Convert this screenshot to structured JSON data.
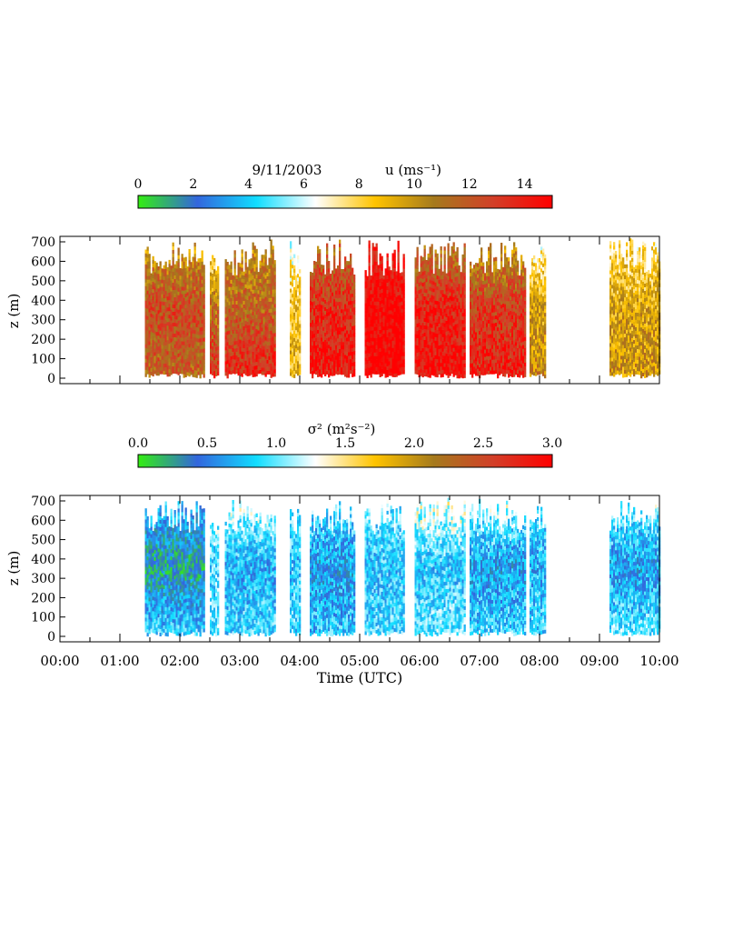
{
  "date_label": "9/11/2003",
  "colorbar_colors": [
    "#33ee11",
    "#3366dd",
    "#11ddff",
    "#ffffff",
    "#ffc400",
    "#a57a1d",
    "#d23f28",
    "#ff0000"
  ],
  "chart_data": [
    {
      "type": "heatmap",
      "title": "u (ms⁻¹)",
      "quantity": "u",
      "units": "ms⁻¹",
      "ylabel": "z (m)",
      "xlabel": "",
      "xlim": [
        "00:00",
        "10:00"
      ],
      "ylim": [
        0,
        700
      ],
      "yticks": [
        "0",
        "100",
        "200",
        "300",
        "400",
        "500",
        "600",
        "700"
      ],
      "color_range": [
        0,
        15
      ],
      "colorbar_ticks": [
        "0",
        "2",
        "4",
        "6",
        "8",
        "10",
        "12",
        "14"
      ],
      "data_gaps": "no data 00:00-01:25 and 08:05-09:10",
      "segments": [
        {
          "start": "01:25",
          "end": "02:25",
          "u_low": 11.5,
          "u_mid": 12.5,
          "u_top": 9.5
        },
        {
          "start": "02:30",
          "end": "02:38",
          "u_low": 13.5,
          "u_mid": 11.0,
          "u_top": 7.0
        },
        {
          "start": "02:45",
          "end": "03:35",
          "u_low": 14.0,
          "u_mid": 11.5,
          "u_top": 10.0
        },
        {
          "start": "03:50",
          "end": "04:00",
          "u_low": 9.0,
          "u_mid": 8.5,
          "u_top": 6.5
        },
        {
          "start": "04:10",
          "end": "04:55",
          "u_low": 14.5,
          "u_mid": 13.5,
          "u_top": 11.0
        },
        {
          "start": "05:05",
          "end": "05:45",
          "u_low": 15.0,
          "u_mid": 15.0,
          "u_top": 13.5
        },
        {
          "start": "05:55",
          "end": "06:45",
          "u_low": 14.5,
          "u_mid": 14.0,
          "u_top": 10.5
        },
        {
          "start": "06:50",
          "end": "07:45",
          "u_low": 14.0,
          "u_mid": 13.0,
          "u_top": 9.5
        },
        {
          "start": "07:50",
          "end": "08:05",
          "u_low": 10.5,
          "u_mid": 9.5,
          "u_top": 7.0
        },
        {
          "start": "09:10",
          "end": "10:00",
          "u_low": 10.0,
          "u_mid": 9.5,
          "u_top": 7.5
        }
      ]
    },
    {
      "type": "heatmap",
      "title": "σ² (m²s⁻²)",
      "quantity": "σ²",
      "units": "m²s⁻²",
      "ylabel": "z (m)",
      "xlabel": "Time (UTC)",
      "xticks": [
        "00:00",
        "01:00",
        "02:00",
        "03:00",
        "04:00",
        "05:00",
        "06:00",
        "07:00",
        "08:00",
        "09:00",
        "10:00"
      ],
      "xlim": [
        "00:00",
        "10:00"
      ],
      "ylim": [
        0,
        700
      ],
      "yticks": [
        "0",
        "100",
        "200",
        "300",
        "400",
        "500",
        "600",
        "700"
      ],
      "color_range": [
        0,
        3
      ],
      "colorbar_ticks": [
        "0.0",
        "0.5",
        "1.0",
        "1.5",
        "2.0",
        "2.5",
        "3.0"
      ],
      "data_gaps": "no data 00:00-01:25 and 08:05-09:10",
      "segments": [
        {
          "start": "01:25",
          "end": "02:25",
          "s_low": 0.9,
          "s_mid": 0.3,
          "s_top": 0.8
        },
        {
          "start": "02:30",
          "end": "02:38",
          "s_low": 1.0,
          "s_mid": 0.9,
          "s_top": 1.1
        },
        {
          "start": "02:45",
          "end": "03:35",
          "s_low": 0.9,
          "s_mid": 0.7,
          "s_top": 1.2
        },
        {
          "start": "03:50",
          "end": "04:00",
          "s_low": 0.9,
          "s_mid": 0.8,
          "s_top": 1.0
        },
        {
          "start": "04:10",
          "end": "04:55",
          "s_low": 0.8,
          "s_mid": 0.6,
          "s_top": 1.0
        },
        {
          "start": "05:05",
          "end": "05:45",
          "s_low": 0.9,
          "s_mid": 0.8,
          "s_top": 1.0
        },
        {
          "start": "05:55",
          "end": "06:45",
          "s_low": 1.0,
          "s_mid": 0.8,
          "s_top": 1.3
        },
        {
          "start": "06:50",
          "end": "07:45",
          "s_low": 0.9,
          "s_mid": 0.6,
          "s_top": 1.2
        },
        {
          "start": "07:50",
          "end": "08:05",
          "s_low": 0.9,
          "s_mid": 0.7,
          "s_top": 1.0
        },
        {
          "start": "09:10",
          "end": "10:00",
          "s_low": 1.0,
          "s_mid": 0.6,
          "s_top": 1.1
        }
      ]
    }
  ]
}
